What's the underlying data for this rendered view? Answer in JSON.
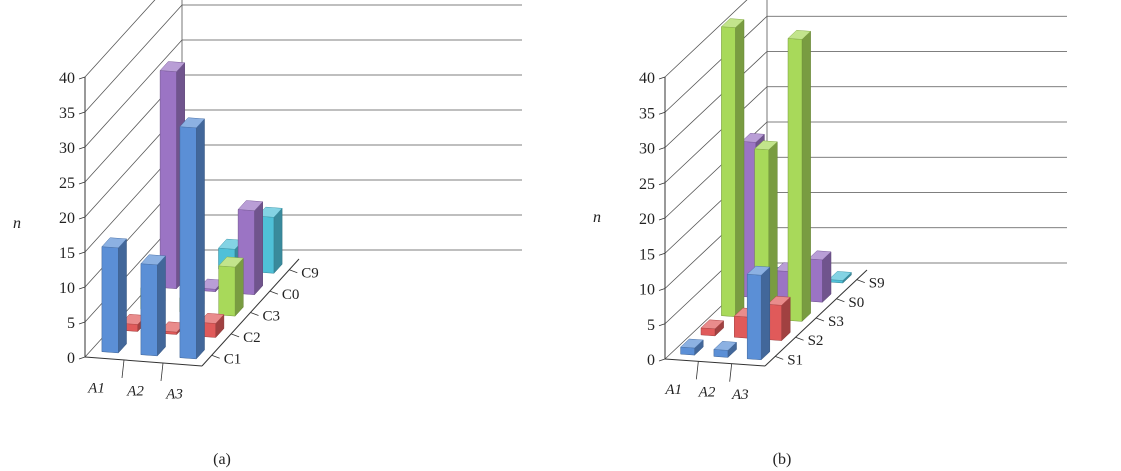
{
  "chart_data": [
    {
      "panel_label": "(a)",
      "type": "bar",
      "ylabel": "n",
      "ylim": [
        0,
        40
      ],
      "yticks": [
        "0",
        "5",
        "10",
        "15",
        "20",
        "25",
        "30",
        "35",
        "40"
      ],
      "categories": [
        "A1",
        "A2",
        "A3"
      ],
      "series": [
        {
          "name": "C1",
          "color": "#5b8fd6",
          "values": [
            15,
            13,
            33
          ]
        },
        {
          "name": "C2",
          "color": "#e05a5a",
          "values": [
            1,
            0,
            2
          ]
        },
        {
          "name": "C3",
          "color": "#a8d95a",
          "values": [
            3,
            2,
            7
          ]
        },
        {
          "name": "C0",
          "color": "#9b74c4",
          "values": [
            31,
            0,
            12
          ]
        },
        {
          "name": "C9",
          "color": "#4fc0d8",
          "values": [
            19,
            3,
            8
          ]
        }
      ]
    },
    {
      "panel_label": "(b)",
      "type": "bar",
      "ylabel": "n",
      "ylim": [
        0,
        40
      ],
      "yticks": [
        "0",
        "5",
        "10",
        "15",
        "20",
        "25",
        "30",
        "35",
        "40"
      ],
      "categories": [
        "A1",
        "A2",
        "A3"
      ],
      "series": [
        {
          "name": "S1",
          "color": "#5b8fd6",
          "values": [
            1,
            1,
            12
          ]
        },
        {
          "name": "S2",
          "color": "#e05a5a",
          "values": [
            1,
            3,
            5
          ]
        },
        {
          "name": "S3",
          "color": "#a8d95a",
          "values": [
            41,
            24,
            40
          ]
        },
        {
          "name": "S0",
          "color": "#9b74c4",
          "values": [
            22,
            4,
            6
          ]
        },
        {
          "name": "S9",
          "color": "#4fc0d8",
          "values": [
            0,
            0,
            0
          ]
        }
      ]
    }
  ]
}
